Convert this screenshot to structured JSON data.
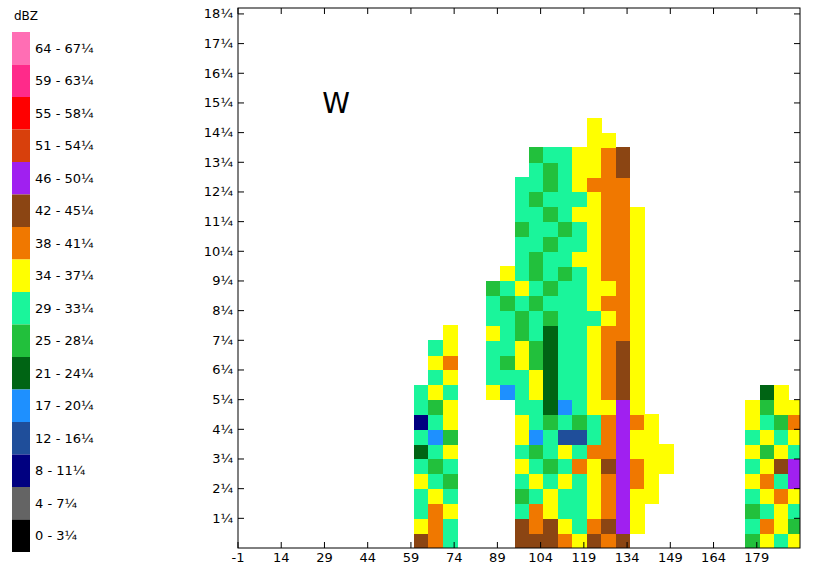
{
  "chart_data": {
    "type": "heatmap",
    "annotations": [
      {
        "text": "W",
        "x": 33,
        "y": 15
      }
    ],
    "xlim": [
      -1,
      194
    ],
    "ylim": [
      0,
      18.2
    ],
    "xticks": [
      -1,
      14,
      29,
      44,
      59,
      74,
      89,
      104,
      119,
      134,
      149,
      164,
      179
    ],
    "yticks": [
      {
        "value": 1,
        "label": "1¼"
      },
      {
        "value": 2,
        "label": "2¼"
      },
      {
        "value": 3,
        "label": "3¼"
      },
      {
        "value": 4,
        "label": "4¼"
      },
      {
        "value": 5,
        "label": "5¼"
      },
      {
        "value": 6,
        "label": "6¼"
      },
      {
        "value": 7,
        "label": "7¼"
      },
      {
        "value": 8,
        "label": "8¼"
      },
      {
        "value": 9,
        "label": "9¼"
      },
      {
        "value": 10,
        "label": "10¼"
      },
      {
        "value": 11,
        "label": "11¼"
      },
      {
        "value": 12,
        "label": "12¼"
      },
      {
        "value": 13,
        "label": "13¼"
      },
      {
        "value": 14,
        "label": "14¼"
      },
      {
        "value": 15,
        "label": "15¼"
      },
      {
        "value": 16,
        "label": "16¼"
      },
      {
        "value": 17,
        "label": "17¼"
      },
      {
        "value": 18,
        "label": "18¼"
      }
    ],
    "colorbar": {
      "title": "dBZ",
      "ranges": [
        [
          64,
          67
        ],
        [
          59,
          63
        ],
        [
          55,
          58
        ],
        [
          51,
          54
        ],
        [
          46,
          50
        ],
        [
          42,
          45
        ],
        [
          38,
          41
        ],
        [
          34,
          37
        ],
        [
          29,
          33
        ],
        [
          25,
          28
        ],
        [
          21,
          24
        ],
        [
          17,
          20
        ],
        [
          12,
          16
        ],
        [
          8,
          11
        ],
        [
          4,
          7
        ],
        [
          0,
          3
        ]
      ],
      "labels": [
        "64 - 67¼",
        "59 - 63¼",
        "55 - 58¼",
        "51 - 54¼",
        "46 - 50¼",
        "42 - 45¼",
        "38 - 41¼",
        "34 - 37¼",
        "29 - 33¼",
        "25 - 28¼",
        "21 - 24¼",
        "17 - 20¼",
        "12 - 16¼",
        "8 - 11¼",
        "4 - 7¼",
        "0 - 3¼"
      ],
      "colors": [
        "#ff6eb4",
        "#ff2a8a",
        "#ff0000",
        "#d8400c",
        "#a020f0",
        "#8b4513",
        "#f07800",
        "#ffff00",
        "#1af59b",
        "#22c03c",
        "#006414",
        "#1e90ff",
        "#1f4e9a",
        "#000080",
        "#646464",
        "#000000"
      ]
    },
    "x_bins": [
      55,
      60,
      65,
      70,
      75,
      80,
      85,
      90,
      95,
      100,
      105,
      110,
      115,
      120,
      125,
      130,
      135,
      140,
      145,
      150,
      155,
      160,
      165,
      170,
      175,
      180,
      185,
      190,
      195
    ],
    "y_bins": [
      0,
      0.5,
      1,
      1.5,
      2,
      2.5,
      3,
      3.5,
      4,
      4.5,
      5,
      5.5,
      6,
      6.5,
      7,
      7.5,
      8,
      8.5,
      9,
      9.5,
      10,
      10.5,
      11,
      11.5,
      12,
      12.5,
      13,
      13.5,
      14,
      14.5
    ],
    "cells": [
      [
        null,
        44,
        40,
        31,
        null,
        null,
        null,
        null,
        44,
        44,
        44,
        40,
        36,
        44,
        40,
        44,
        null,
        null,
        null,
        null,
        null,
        null,
        null,
        null,
        27,
        36,
        31,
        36
      ],
      [
        null,
        36,
        40,
        31,
        null,
        null,
        null,
        null,
        44,
        40,
        44,
        36,
        31,
        40,
        44,
        48,
        36,
        null,
        null,
        null,
        null,
        null,
        null,
        null,
        31,
        40,
        36,
        27
      ],
      [
        null,
        31,
        40,
        36,
        null,
        null,
        null,
        null,
        31,
        40,
        36,
        31,
        31,
        36,
        40,
        48,
        36,
        null,
        null,
        null,
        null,
        null,
        null,
        null,
        27,
        31,
        36,
        31
      ],
      [
        null,
        31,
        36,
        31,
        null,
        null,
        null,
        null,
        27,
        31,
        36,
        31,
        31,
        36,
        40,
        48,
        36,
        36,
        null,
        null,
        null,
        null,
        null,
        null,
        31,
        36,
        40,
        36
      ],
      [
        null,
        36,
        31,
        27,
        null,
        null,
        null,
        null,
        31,
        36,
        31,
        36,
        31,
        36,
        40,
        48,
        40,
        36,
        null,
        null,
        null,
        null,
        null,
        null,
        36,
        40,
        31,
        48
      ],
      [
        null,
        31,
        27,
        31,
        null,
        null,
        null,
        null,
        36,
        31,
        27,
        31,
        40,
        36,
        44,
        48,
        40,
        36,
        36,
        null,
        null,
        null,
        null,
        null,
        31,
        36,
        44,
        48
      ],
      [
        null,
        23,
        31,
        36,
        null,
        null,
        null,
        null,
        31,
        27,
        31,
        36,
        31,
        40,
        40,
        48,
        36,
        36,
        36,
        null,
        null,
        null,
        null,
        null,
        36,
        27,
        36,
        31
      ],
      [
        null,
        31,
        18,
        27,
        null,
        null,
        null,
        null,
        36,
        18,
        31,
        14,
        14,
        31,
        40,
        48,
        36,
        36,
        null,
        null,
        null,
        null,
        null,
        null,
        31,
        36,
        31,
        36
      ],
      [
        null,
        10,
        31,
        36,
        null,
        null,
        null,
        null,
        36,
        31,
        27,
        31,
        27,
        31,
        40,
        48,
        40,
        36,
        null,
        null,
        null,
        null,
        null,
        null,
        36,
        31,
        27,
        40
      ],
      [
        null,
        31,
        27,
        36,
        null,
        null,
        null,
        null,
        31,
        31,
        23,
        18,
        31,
        36,
        36,
        48,
        36,
        null,
        null,
        null,
        null,
        null,
        null,
        null,
        36,
        27,
        36,
        36
      ],
      [
        null,
        31,
        36,
        31,
        null,
        null,
        36,
        18,
        31,
        36,
        23,
        31,
        31,
        36,
        40,
        44,
        36,
        null,
        null,
        null,
        null,
        null,
        null,
        null,
        null,
        23,
        36,
        null
      ],
      [
        null,
        null,
        31,
        36,
        null,
        null,
        31,
        31,
        31,
        36,
        23,
        31,
        31,
        36,
        40,
        44,
        36,
        null,
        null,
        null,
        null,
        null,
        null,
        null,
        null,
        null,
        null,
        null
      ],
      [
        null,
        null,
        36,
        40,
        null,
        null,
        31,
        27,
        36,
        27,
        23,
        31,
        31,
        36,
        40,
        44,
        36,
        null,
        null,
        null,
        null,
        null,
        null,
        null,
        null,
        null,
        null,
        null
      ],
      [
        null,
        null,
        31,
        36,
        null,
        null,
        31,
        31,
        36,
        27,
        23,
        31,
        31,
        36,
        40,
        44,
        36,
        null,
        null,
        null,
        null,
        null,
        null,
        null,
        null,
        null,
        null,
        null
      ],
      [
        null,
        null,
        null,
        36,
        null,
        null,
        36,
        31,
        27,
        31,
        23,
        31,
        31,
        36,
        40,
        40,
        36,
        null,
        null,
        null,
        null,
        null,
        null,
        null,
        null,
        null,
        null,
        null
      ],
      [
        null,
        null,
        null,
        null,
        null,
        null,
        31,
        31,
        27,
        31,
        27,
        31,
        31,
        31,
        36,
        40,
        36,
        null,
        null,
        null,
        null,
        null,
        null,
        null,
        null,
        null,
        null,
        null
      ],
      [
        null,
        null,
        null,
        null,
        null,
        null,
        31,
        27,
        31,
        27,
        31,
        31,
        31,
        36,
        40,
        40,
        36,
        null,
        null,
        null,
        null,
        null,
        null,
        null,
        null,
        null,
        null,
        null
      ],
      [
        null,
        null,
        null,
        null,
        null,
        null,
        27,
        31,
        36,
        31,
        27,
        31,
        31,
        36,
        36,
        40,
        36,
        null,
        null,
        null,
        null,
        null,
        null,
        null,
        null,
        null,
        null,
        null
      ],
      [
        null,
        null,
        null,
        null,
        null,
        null,
        null,
        36,
        31,
        27,
        31,
        27,
        31,
        36,
        40,
        40,
        36,
        null,
        null,
        null,
        null,
        null,
        null,
        null,
        null,
        null,
        null,
        null
      ],
      [
        null,
        null,
        null,
        null,
        null,
        null,
        null,
        null,
        31,
        27,
        31,
        31,
        36,
        36,
        40,
        40,
        36,
        null,
        null,
        null,
        null,
        null,
        null,
        null,
        null,
        null,
        null,
        null
      ],
      [
        null,
        null,
        null,
        null,
        null,
        null,
        null,
        null,
        31,
        31,
        27,
        31,
        31,
        36,
        40,
        40,
        36,
        null,
        null,
        null,
        null,
        null,
        null,
        null,
        null,
        null,
        null,
        null
      ],
      [
        null,
        null,
        null,
        null,
        null,
        null,
        null,
        null,
        27,
        31,
        31,
        27,
        31,
        36,
        40,
        40,
        36,
        null,
        null,
        null,
        null,
        null,
        null,
        null,
        null,
        null,
        null,
        null
      ],
      [
        null,
        null,
        null,
        null,
        null,
        null,
        null,
        null,
        31,
        31,
        27,
        31,
        36,
        36,
        40,
        40,
        36,
        null,
        null,
        null,
        null,
        null,
        null,
        null,
        null,
        null,
        null,
        null
      ],
      [
        null,
        null,
        null,
        null,
        null,
        null,
        null,
        null,
        31,
        27,
        31,
        31,
        31,
        36,
        40,
        40,
        null,
        null,
        null,
        null,
        null,
        null,
        null,
        null,
        null,
        null,
        null,
        null
      ],
      [
        null,
        null,
        null,
        null,
        null,
        null,
        null,
        null,
        31,
        31,
        27,
        31,
        36,
        40,
        40,
        40,
        null,
        null,
        null,
        null,
        null,
        null,
        null,
        null,
        null,
        null,
        null,
        null
      ],
      [
        null,
        null,
        null,
        null,
        null,
        null,
        null,
        null,
        null,
        31,
        27,
        31,
        36,
        36,
        40,
        44,
        null,
        null,
        null,
        null,
        null,
        null,
        null,
        null,
        null,
        null,
        null,
        null
      ],
      [
        null,
        null,
        null,
        null,
        null,
        null,
        null,
        null,
        null,
        27,
        31,
        31,
        36,
        36,
        40,
        44,
        null,
        null,
        null,
        null,
        null,
        null,
        null,
        null,
        null,
        null,
        null,
        null
      ],
      [
        null,
        null,
        null,
        null,
        null,
        null,
        null,
        null,
        null,
        null,
        null,
        null,
        null,
        36,
        36,
        null,
        null,
        null,
        null,
        null,
        null,
        null,
        null,
        null,
        null,
        null,
        null,
        null
      ],
      [
        null,
        null,
        null,
        null,
        null,
        null,
        null,
        null,
        null,
        null,
        null,
        null,
        null,
        36,
        null,
        null,
        null,
        null,
        null,
        null,
        null,
        null,
        null,
        null,
        null,
        null,
        null,
        null
      ]
    ]
  }
}
